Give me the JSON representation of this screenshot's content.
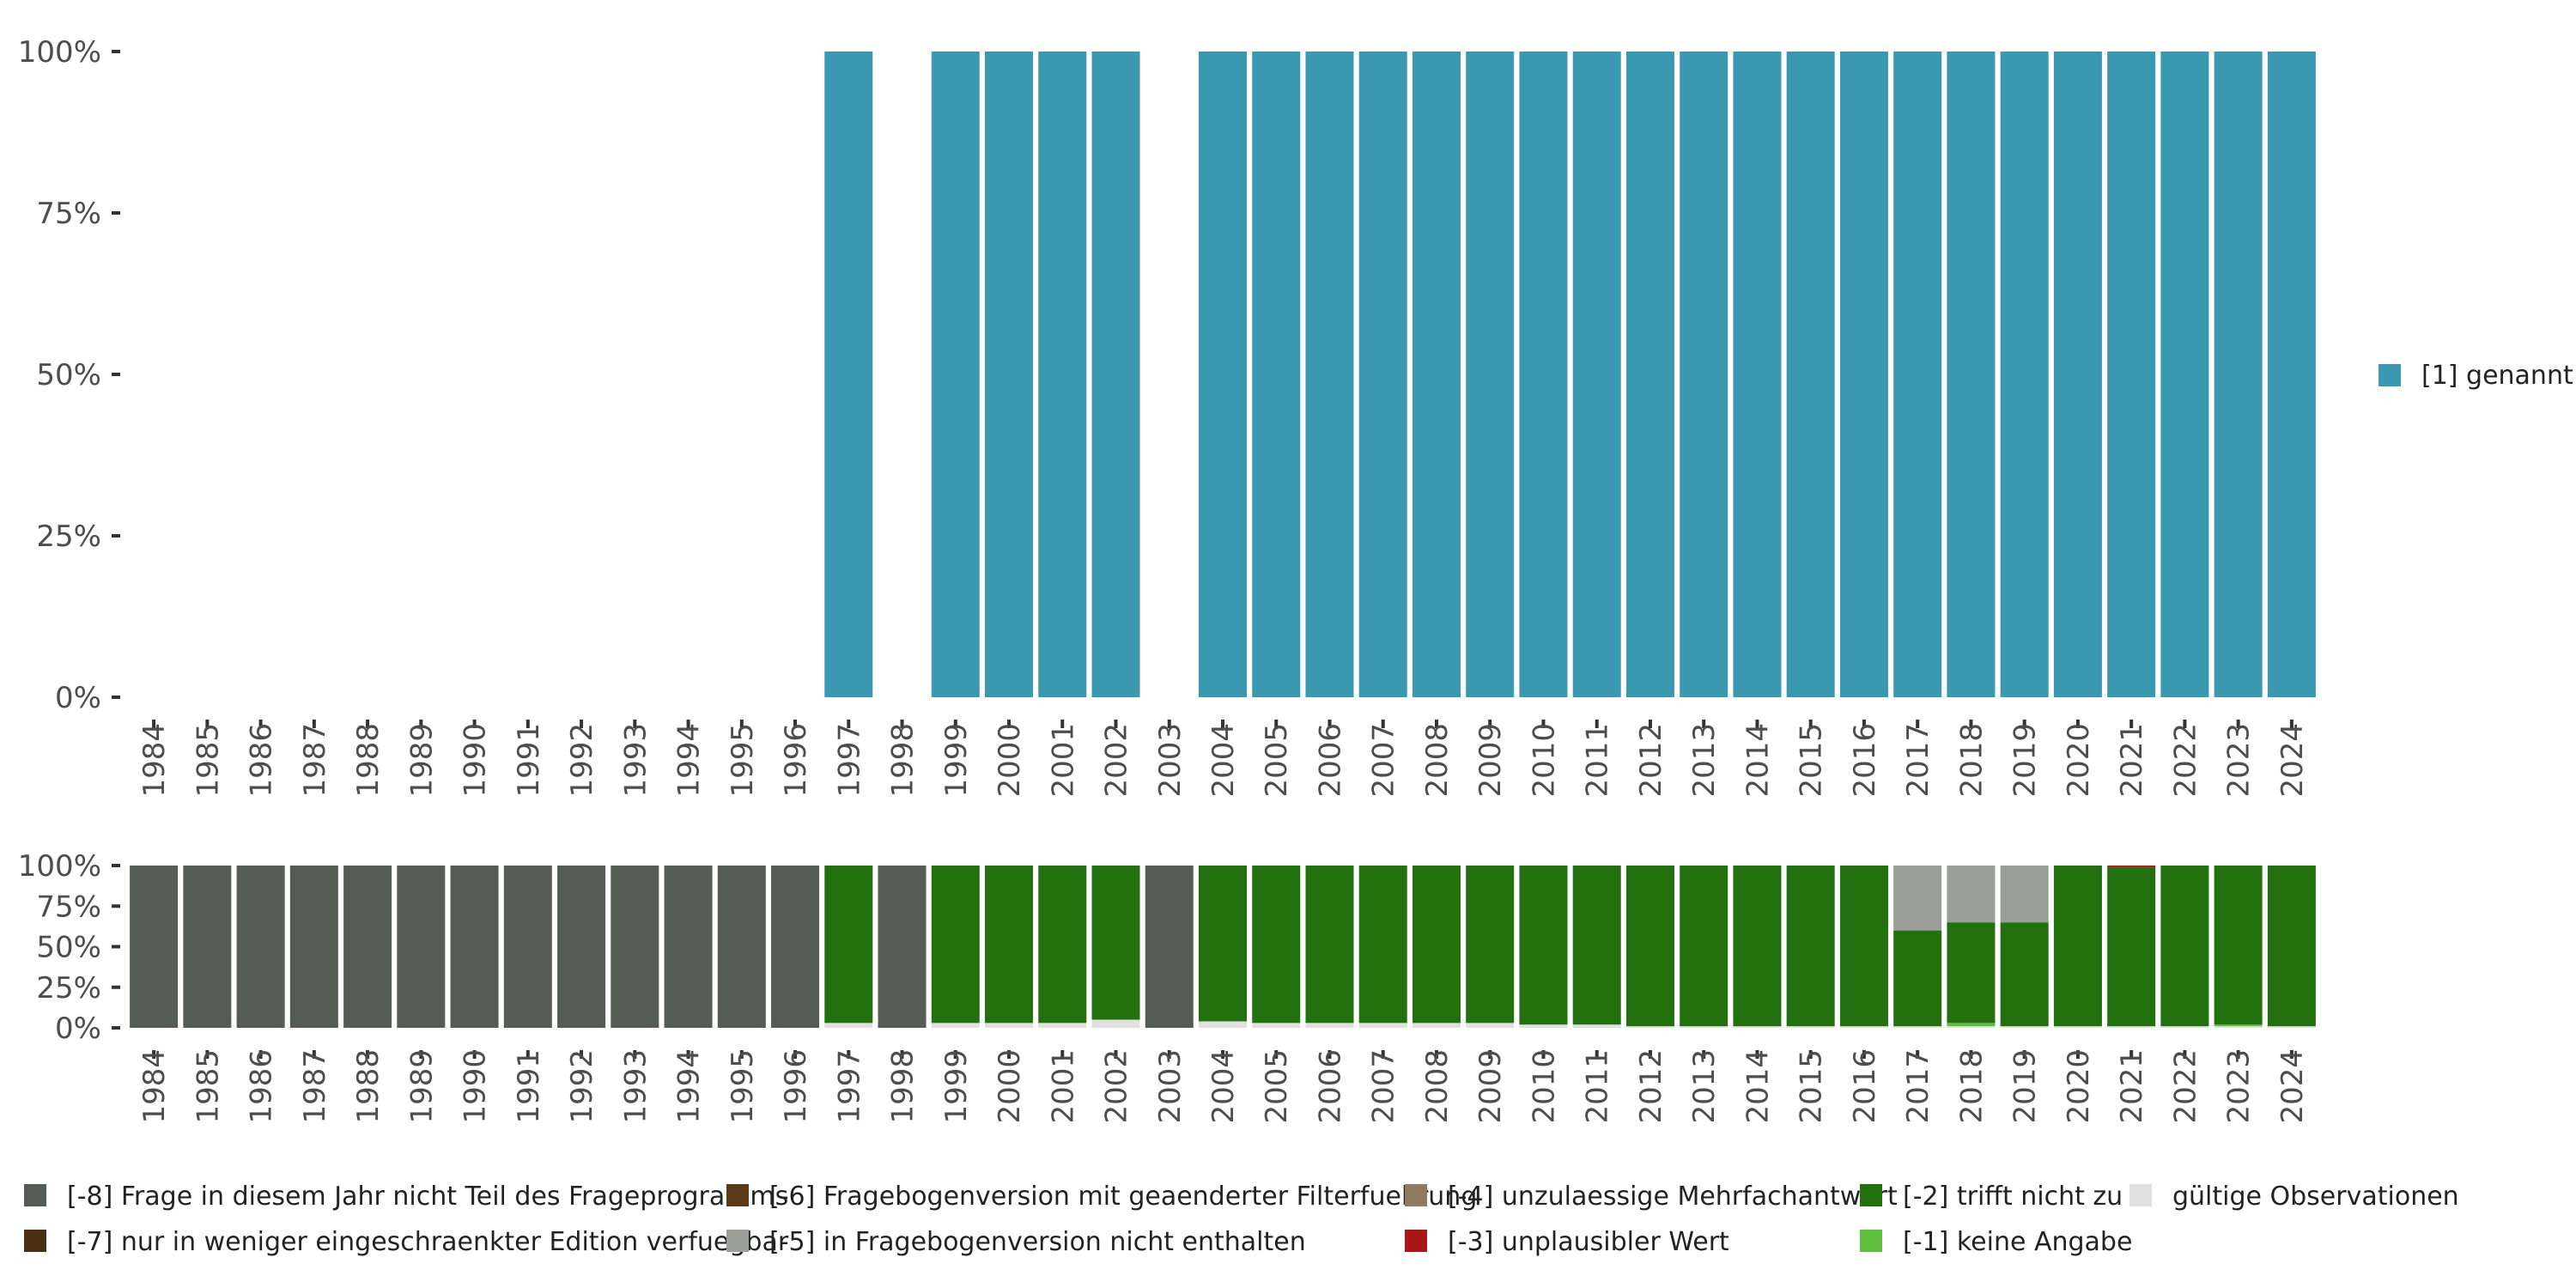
{
  "colors": {
    "genannt": "#3b98b1",
    "not_in_program": "#555b55",
    "filter_changed": "#5b3a1a",
    "invalid_multi": "#8f7b62",
    "not_applicable": "#23700f",
    "valid": "#e0e0e0",
    "limited_edition": "#4a3013",
    "not_in_version": "#9c9e9a",
    "implausible": "#a81818",
    "no_answer": "#5ebf3e"
  },
  "chart_data": [
    {
      "type": "bar",
      "stacked": true,
      "categories": [
        "1984",
        "1985",
        "1986",
        "1987",
        "1988",
        "1989",
        "1990",
        "1991",
        "1992",
        "1993",
        "1994",
        "1995",
        "1996",
        "1997",
        "1998",
        "1999",
        "2000",
        "2001",
        "2002",
        "2003",
        "2004",
        "2005",
        "2006",
        "2007",
        "2008",
        "2009",
        "2010",
        "2011",
        "2012",
        "2013",
        "2014",
        "2015",
        "2016",
        "2017",
        "2018",
        "2019",
        "2020",
        "2021",
        "2022",
        "2023",
        "2024"
      ],
      "ylim": [
        0,
        100
      ],
      "yticks": [
        "0%",
        "25%",
        "50%",
        "75%",
        "100%"
      ],
      "legend_position": "right",
      "series": [
        {
          "name": "[1] genannt",
          "color_key": "genannt",
          "values": [
            0,
            0,
            0,
            0,
            0,
            0,
            0,
            0,
            0,
            0,
            0,
            0,
            0,
            100,
            0,
            100,
            100,
            100,
            100,
            0,
            100,
            100,
            100,
            100,
            100,
            100,
            100,
            100,
            100,
            100,
            100,
            100,
            100,
            100,
            100,
            100,
            100,
            100,
            100,
            100,
            100
          ]
        }
      ]
    },
    {
      "type": "bar",
      "stacked": true,
      "categories": [
        "1984",
        "1985",
        "1986",
        "1987",
        "1988",
        "1989",
        "1990",
        "1991",
        "1992",
        "1993",
        "1994",
        "1995",
        "1996",
        "1997",
        "1998",
        "1999",
        "2000",
        "2001",
        "2002",
        "2003",
        "2004",
        "2005",
        "2006",
        "2007",
        "2008",
        "2009",
        "2010",
        "2011",
        "2012",
        "2013",
        "2014",
        "2015",
        "2016",
        "2017",
        "2018",
        "2019",
        "2020",
        "2021",
        "2022",
        "2023",
        "2024"
      ],
      "ylim": [
        0,
        100
      ],
      "yticks": [
        "0%",
        "25%",
        "50%",
        "75%",
        "100%"
      ],
      "legend_position": "bottom",
      "series": [
        {
          "name": "gültige Observationen",
          "color_key": "valid",
          "values": [
            0,
            0,
            0,
            0,
            0,
            0,
            0,
            0,
            0,
            0,
            0,
            0,
            0,
            3,
            0,
            3,
            3,
            3,
            5,
            0,
            4,
            3,
            3,
            3,
            3,
            3,
            2,
            2,
            1,
            1,
            1,
            1,
            1,
            1,
            1,
            1,
            1,
            1,
            1,
            1,
            1
          ]
        },
        {
          "name": "[-1] keine Angabe",
          "color_key": "no_answer",
          "values": [
            0,
            0,
            0,
            0,
            0,
            0,
            0,
            0,
            0,
            0,
            0,
            0,
            0,
            0,
            0,
            0,
            0,
            0,
            0,
            0,
            0,
            0,
            0,
            0,
            0,
            0,
            0,
            0,
            0,
            0,
            0,
            0,
            0,
            0,
            2,
            0,
            0,
            0,
            0,
            1,
            0
          ]
        },
        {
          "name": "[-2] trifft nicht zu",
          "color_key": "not_applicable",
          "values": [
            0,
            0,
            0,
            0,
            0,
            0,
            0,
            0,
            0,
            0,
            0,
            0,
            0,
            97,
            0,
            97,
            97,
            97,
            95,
            0,
            96,
            97,
            97,
            97,
            97,
            97,
            98,
            98,
            99,
            99,
            99,
            99,
            99,
            59,
            62,
            64,
            99,
            98,
            99,
            98,
            99
          ]
        },
        {
          "name": "[-3] unplausibler Wert",
          "color_key": "implausible",
          "values": [
            0,
            0,
            0,
            0,
            0,
            0,
            0,
            0,
            0,
            0,
            0,
            0,
            0,
            0,
            0,
            0,
            0,
            0,
            0,
            0,
            0,
            0,
            0,
            0,
            0,
            0,
            0,
            0,
            0,
            0,
            0,
            0,
            0,
            0,
            0,
            0,
            0,
            1,
            0,
            0,
            0
          ]
        },
        {
          "name": "[-4] unzulaessige Mehrfachantwort",
          "color_key": "invalid_multi",
          "values": [
            0,
            0,
            0,
            0,
            0,
            0,
            0,
            0,
            0,
            0,
            0,
            0,
            0,
            0,
            0,
            0,
            0,
            0,
            0,
            0,
            0,
            0,
            0,
            0,
            0,
            0,
            0,
            0,
            0,
            0,
            0,
            0,
            0,
            0,
            0,
            0,
            0,
            0,
            0,
            0,
            0
          ]
        },
        {
          "name": "[-5] in Fragebogenversion nicht enthalten",
          "color_key": "not_in_version",
          "values": [
            0,
            0,
            0,
            0,
            0,
            0,
            0,
            0,
            0,
            0,
            0,
            0,
            0,
            0,
            0,
            0,
            0,
            0,
            0,
            0,
            0,
            0,
            0,
            0,
            0,
            0,
            0,
            0,
            0,
            0,
            0,
            0,
            0,
            40,
            35,
            35,
            0,
            0,
            0,
            0,
            0
          ]
        },
        {
          "name": "[-6] Fragebogenversion mit geaenderter Filterfuehrung",
          "color_key": "filter_changed",
          "values": [
            0,
            0,
            0,
            0,
            0,
            0,
            0,
            0,
            0,
            0,
            0,
            0,
            0,
            0,
            0,
            0,
            0,
            0,
            0,
            0,
            0,
            0,
            0,
            0,
            0,
            0,
            0,
            0,
            0,
            0,
            0,
            0,
            0,
            0,
            0,
            0,
            0,
            0,
            0,
            0,
            0
          ]
        },
        {
          "name": "[-7] nur in weniger eingeschraenkter Edition verfuegbar",
          "color_key": "limited_edition",
          "values": [
            0,
            0,
            0,
            0,
            0,
            0,
            0,
            0,
            0,
            0,
            0,
            0,
            0,
            0,
            0,
            0,
            0,
            0,
            0,
            0,
            0,
            0,
            0,
            0,
            0,
            0,
            0,
            0,
            0,
            0,
            0,
            0,
            0,
            0,
            0,
            0,
            0,
            0,
            0,
            0,
            0
          ]
        },
        {
          "name": "[-8] Frage in diesem Jahr nicht Teil des Frageprogramms",
          "color_key": "not_in_program",
          "values": [
            100,
            100,
            100,
            100,
            100,
            100,
            100,
            100,
            100,
            100,
            100,
            100,
            100,
            0,
            100,
            0,
            0,
            0,
            0,
            100,
            0,
            0,
            0,
            0,
            0,
            0,
            0,
            0,
            0,
            0,
            0,
            0,
            0,
            0,
            0,
            0,
            0,
            0,
            0,
            0,
            0
          ]
        }
      ],
      "legend_order": [
        "[-8] Frage in diesem Jahr nicht Teil des Frageprogramms",
        "[-7] nur in weniger eingeschraenkter Edition verfuegbar",
        "[-6] Fragebogenversion mit geaenderter Filterfuehrung",
        "[-5] in Fragebogenversion nicht enthalten",
        "[-4] unzulaessige Mehrfachantwort",
        "[-3] unplausibler Wert",
        "[-2] trifft nicht zu",
        "[-1] keine Angabe",
        "gültige Observationen"
      ]
    }
  ]
}
